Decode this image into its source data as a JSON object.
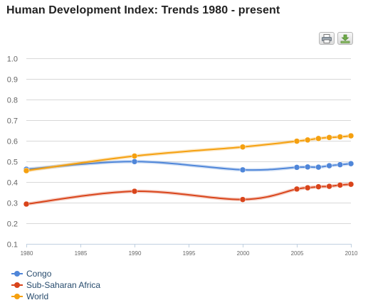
{
  "title": "Human Development Index: Trends 1980 - present",
  "toolbar": {
    "print_icon": "printer-icon",
    "export_icon": "download-icon"
  },
  "chart_data": {
    "type": "line",
    "title": "Human Development Index: Trends 1980 - present",
    "xlabel": "",
    "ylabel": "",
    "xlim": [
      1980,
      2010
    ],
    "ylim": [
      0.1,
      1.0
    ],
    "x_ticks": [
      1980,
      1985,
      1990,
      1995,
      2000,
      2005,
      2010
    ],
    "y_ticks": [
      "0.1",
      "0.2",
      "0.3",
      "0.4",
      "0.5",
      "0.6",
      "0.7",
      "0.8",
      "0.9",
      "1.0"
    ],
    "grid": true,
    "legend_position": "bottom-left",
    "series": [
      {
        "name": "Congo",
        "color": "#4f86d9",
        "x": [
          1980,
          1990,
          2000,
          2005,
          2006,
          2007,
          2008,
          2009,
          2010
        ],
        "y": [
          0.462,
          0.499,
          0.459,
          0.471,
          0.473,
          0.472,
          0.479,
          0.484,
          0.489
        ]
      },
      {
        "name": "Sub-Saharan Africa",
        "color": "#d9441a",
        "x": [
          1980,
          1990,
          2000,
          2005,
          2006,
          2007,
          2008,
          2009,
          2010
        ],
        "y": [
          0.293,
          0.355,
          0.315,
          0.366,
          0.372,
          0.377,
          0.379,
          0.385,
          0.389
        ]
      },
      {
        "name": "World",
        "color": "#f5a00f",
        "x": [
          1980,
          1990,
          2000,
          2005,
          2006,
          2007,
          2008,
          2009,
          2010
        ],
        "y": [
          0.455,
          0.526,
          0.57,
          0.598,
          0.604,
          0.611,
          0.616,
          0.619,
          0.624
        ]
      }
    ]
  }
}
